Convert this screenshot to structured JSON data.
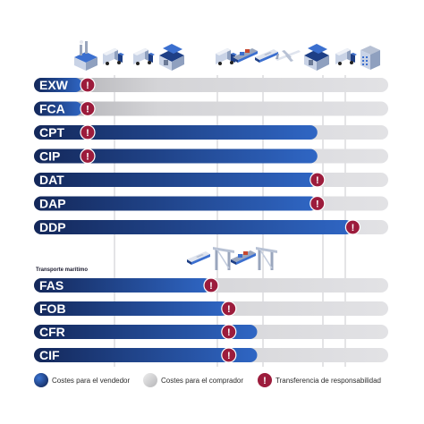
{
  "colors": {
    "seller_dark": "#14285a",
    "seller_light": "#2f66c4",
    "buyer_bar": "#d9d9dc",
    "buyer_fade": "#a9a9ad",
    "risk_circle": "#9c1c3c",
    "divider": "#c8c8cc"
  },
  "columns": [
    {
      "icon": "factory-icon"
    },
    {
      "icon": "truck-icon"
    },
    {
      "icon": "truck-icon"
    },
    {
      "icon": "warehouse-icon"
    },
    {
      "icon": "truck-icon"
    },
    {
      "icon": "cargo-ship-icon"
    },
    {
      "icon": "ship-icon"
    },
    {
      "icon": "airplane-icon"
    },
    {
      "icon": "warehouse-icon"
    },
    {
      "icon": "truck-icon"
    },
    {
      "icon": "building-icon"
    }
  ],
  "chart_data": {
    "type": "bar",
    "top_group": [
      {
        "term": "EXW",
        "seller_until": 0.0,
        "risk_at": 0.0
      },
      {
        "term": "FCA",
        "seller_until": 0.1,
        "risk_at": 0.1
      },
      {
        "term": "CPT",
        "seller_until": 0.8,
        "risk_at": 0.1
      },
      {
        "term": "CIP",
        "seller_until": 0.8,
        "risk_at": 0.1
      },
      {
        "term": "DAT",
        "seller_until": 0.8,
        "risk_at": 0.8
      },
      {
        "term": "DAP",
        "seller_until": 0.8,
        "risk_at": 0.8
      },
      {
        "term": "DDP",
        "seller_until": 0.9,
        "risk_at": 0.9
      }
    ],
    "sea_group": [
      {
        "term": "FAS",
        "seller_until": 0.5,
        "risk_at": 0.5
      },
      {
        "term": "FOB",
        "seller_until": 0.55,
        "risk_at": 0.55
      },
      {
        "term": "CFR",
        "seller_until": 0.63,
        "risk_at": 0.55
      },
      {
        "term": "CIF",
        "seller_until": 0.63,
        "risk_at": 0.55
      }
    ]
  },
  "sea_section": {
    "label": "Transporte marítimo",
    "icons": [
      "ship-icon",
      "crane-icon",
      "cargo-ship-icon",
      "crane-icon"
    ]
  },
  "legend": [
    {
      "label": "Costes para el vendedor",
      "kind": "seller"
    },
    {
      "label": "Costes para el comprador",
      "kind": "buyer"
    },
    {
      "label": "Transferencia de responsabilidad",
      "kind": "risk"
    }
  ],
  "risk_symbol": "!"
}
